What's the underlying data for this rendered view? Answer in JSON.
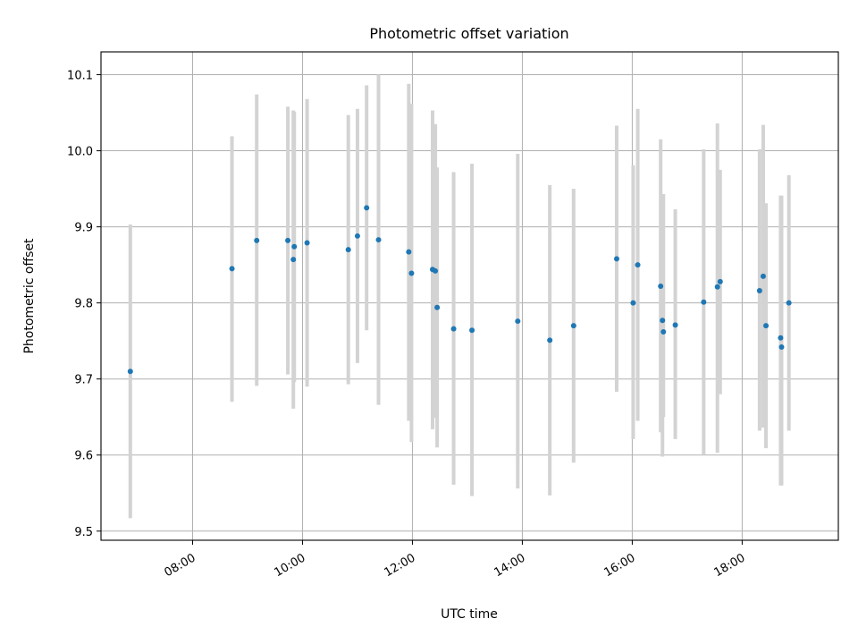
{
  "chart_data": {
    "type": "scatter",
    "title": "Photometric offset variation",
    "xlabel": "UTC time",
    "ylabel": "Photometric offset",
    "xlim": [
      "06:20",
      "19:45"
    ],
    "ylim": [
      9.488,
      10.13
    ],
    "x_ticks": [
      "08:00",
      "10:00",
      "12:00",
      "14:00",
      "16:00",
      "18:00"
    ],
    "y_ticks": [
      9.5,
      9.6,
      9.7,
      9.8,
      9.9,
      10.0,
      10.1
    ],
    "y_tick_labels": [
      "9.5",
      "9.6",
      "9.7",
      "9.8",
      "9.9",
      "10.0",
      "10.1"
    ],
    "grid": true,
    "colors": {
      "marker": "#1f77b4",
      "errorbar": "#d3d3d3",
      "grid": "#b0b0b0"
    },
    "points": [
      {
        "t": "06:52",
        "y": 9.71,
        "ylow": 9.517,
        "yhigh": 9.903
      },
      {
        "t": "08:43",
        "y": 9.845,
        "ylow": 9.67,
        "yhigh": 10.019
      },
      {
        "t": "09:10",
        "y": 9.882,
        "ylow": 9.691,
        "yhigh": 10.074
      },
      {
        "t": "09:44",
        "y": 9.882,
        "ylow": 9.706,
        "yhigh": 10.058
      },
      {
        "t": "09:50",
        "y": 9.857,
        "ylow": 9.661,
        "yhigh": 10.053
      },
      {
        "t": "09:51",
        "y": 9.874,
        "ylow": 9.696,
        "yhigh": 10.051
      },
      {
        "t": "10:05",
        "y": 9.879,
        "ylow": 9.69,
        "yhigh": 10.068
      },
      {
        "t": "10:50",
        "y": 9.87,
        "ylow": 9.693,
        "yhigh": 10.047
      },
      {
        "t": "11:00",
        "y": 9.888,
        "ylow": 9.721,
        "yhigh": 10.055
      },
      {
        "t": "11:10",
        "y": 9.925,
        "ylow": 9.764,
        "yhigh": 10.086
      },
      {
        "t": "11:23",
        "y": 9.883,
        "ylow": 9.666,
        "yhigh": 10.1
      },
      {
        "t": "11:56",
        "y": 9.867,
        "ylow": 9.645,
        "yhigh": 10.088
      },
      {
        "t": "11:59",
        "y": 9.839,
        "ylow": 9.617,
        "yhigh": 10.062
      },
      {
        "t": "12:22",
        "y": 9.844,
        "ylow": 9.634,
        "yhigh": 10.053
      },
      {
        "t": "12:25",
        "y": 9.842,
        "ylow": 9.649,
        "yhigh": 10.035
      },
      {
        "t": "12:27",
        "y": 9.794,
        "ylow": 9.61,
        "yhigh": 9.978
      },
      {
        "t": "12:45",
        "y": 9.766,
        "ylow": 9.561,
        "yhigh": 9.972
      },
      {
        "t": "13:05",
        "y": 9.764,
        "ylow": 9.546,
        "yhigh": 9.983
      },
      {
        "t": "13:55",
        "y": 9.776,
        "ylow": 9.556,
        "yhigh": 9.996
      },
      {
        "t": "14:30",
        "y": 9.751,
        "ylow": 9.547,
        "yhigh": 9.955
      },
      {
        "t": "14:56",
        "y": 9.77,
        "ylow": 9.59,
        "yhigh": 9.95
      },
      {
        "t": "15:43",
        "y": 9.858,
        "ylow": 9.683,
        "yhigh": 10.033
      },
      {
        "t": "16:01",
        "y": 9.8,
        "ylow": 9.621,
        "yhigh": 9.981
      },
      {
        "t": "16:06",
        "y": 9.85,
        "ylow": 9.645,
        "yhigh": 10.055
      },
      {
        "t": "16:31",
        "y": 9.822,
        "ylow": 9.63,
        "yhigh": 10.015
      },
      {
        "t": "16:33",
        "y": 9.777,
        "ylow": 9.598,
        "yhigh": 9.942
      },
      {
        "t": "16:34",
        "y": 9.762,
        "ylow": 9.65,
        "yhigh": 9.943
      },
      {
        "t": "16:47",
        "y": 9.771,
        "ylow": 9.621,
        "yhigh": 9.923
      },
      {
        "t": "17:18",
        "y": 9.801,
        "ylow": 9.6,
        "yhigh": 10.002
      },
      {
        "t": "17:33",
        "y": 9.821,
        "ylow": 9.603,
        "yhigh": 10.036
      },
      {
        "t": "17:36",
        "y": 9.828,
        "ylow": 9.68,
        "yhigh": 9.975
      },
      {
        "t": "18:19",
        "y": 9.816,
        "ylow": 9.632,
        "yhigh": 10.002
      },
      {
        "t": "18:23",
        "y": 9.835,
        "ylow": 9.636,
        "yhigh": 10.034
      },
      {
        "t": "18:26",
        "y": 9.77,
        "ylow": 9.609,
        "yhigh": 9.931
      },
      {
        "t": "18:42",
        "y": 9.754,
        "ylow": 9.56,
        "yhigh": 9.941
      },
      {
        "t": "18:43",
        "y": 9.742,
        "ylow": 9.56,
        "yhigh": 9.941
      },
      {
        "t": "18:51",
        "y": 9.8,
        "ylow": 9.632,
        "yhigh": 9.968
      }
    ]
  }
}
